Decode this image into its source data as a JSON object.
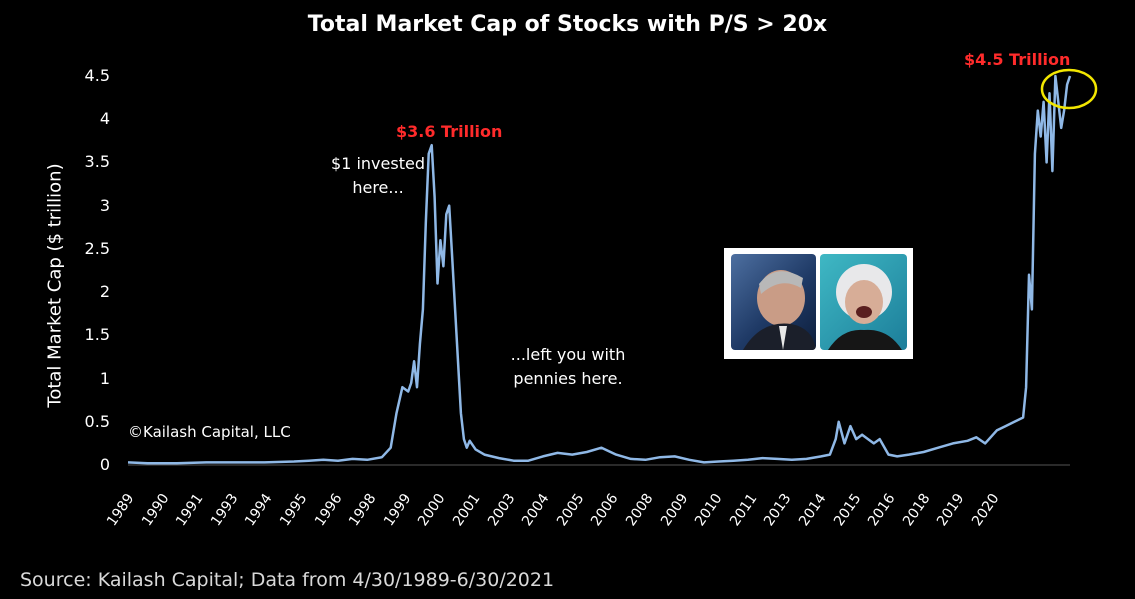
{
  "chart_data": {
    "type": "line",
    "title": "Total Market Cap of Stocks with P/S > 20x",
    "ylabel": "Total Market Cap ($ trillion)",
    "xlabel": "",
    "ylim": [
      0,
      4.5
    ],
    "yticks": [
      "0",
      "0.5",
      "1",
      "1.5",
      "2",
      "2.5",
      "3",
      "3.5",
      "4",
      "4.5"
    ],
    "xticks": [
      "1989",
      "1990",
      "1991",
      "1993",
      "1994",
      "1995",
      "1996",
      "1998",
      "1999",
      "2000",
      "2001",
      "2003",
      "2004",
      "2005",
      "2006",
      "2008",
      "2009",
      "2010",
      "2011",
      "2013",
      "2014",
      "2015",
      "2016",
      "2018",
      "2019",
      "2020"
    ],
    "grid": false,
    "line_color": "#8fb8e6",
    "series": [
      {
        "x": [
          1989.33,
          1990.0,
          1991.0,
          1992.0,
          1993.0,
          1994.0,
          1995.0,
          1995.5,
          1996.0,
          1996.5,
          1997.0,
          1997.5,
          1998.0,
          1998.3,
          1998.5,
          1998.7,
          1998.9,
          1999.0,
          1999.1,
          1999.2,
          1999.3,
          1999.4,
          1999.5,
          1999.6,
          1999.7,
          1999.8,
          1999.9,
          2000.0,
          2000.1,
          2000.2,
          2000.3,
          2000.4,
          2000.5,
          2000.6,
          2000.7,
          2000.8,
          2000.9,
          2001.0,
          2001.2,
          2001.5,
          2002.0,
          2002.5,
          2003.0,
          2003.5,
          2004.0,
          2004.5,
          2005.0,
          2005.5,
          2006.0,
          2006.5,
          2007.0,
          2007.5,
          2008.0,
          2008.5,
          2009.0,
          2009.5,
          2010.0,
          2010.5,
          2011.0,
          2011.5,
          2012.0,
          2012.5,
          2013.0,
          2013.3,
          2013.5,
          2013.6,
          2013.8,
          2014.0,
          2014.2,
          2014.4,
          2014.6,
          2014.8,
          2015.0,
          2015.3,
          2015.6,
          2016.0,
          2016.5,
          2017.0,
          2017.5,
          2018.0,
          2018.3,
          2018.6,
          2019.0,
          2019.3,
          2019.6,
          2019.9,
          2020.0,
          2020.1,
          2020.2,
          2020.3,
          2020.4,
          2020.5,
          2020.6,
          2020.7,
          2020.8,
          2020.9,
          2021.0,
          2021.1,
          2021.2,
          2021.3,
          2021.4,
          2021.5
        ],
        "y": [
          0.03,
          0.02,
          0.02,
          0.03,
          0.03,
          0.03,
          0.04,
          0.05,
          0.06,
          0.05,
          0.07,
          0.06,
          0.09,
          0.2,
          0.6,
          0.9,
          0.85,
          0.95,
          1.2,
          0.9,
          1.4,
          1.8,
          2.8,
          3.6,
          3.7,
          3.1,
          2.1,
          2.6,
          2.3,
          2.9,
          3.0,
          2.4,
          1.8,
          1.2,
          0.6,
          0.3,
          0.2,
          0.28,
          0.18,
          0.12,
          0.08,
          0.05,
          0.05,
          0.1,
          0.14,
          0.12,
          0.15,
          0.2,
          0.12,
          0.07,
          0.06,
          0.09,
          0.1,
          0.06,
          0.03,
          0.04,
          0.05,
          0.06,
          0.08,
          0.07,
          0.06,
          0.07,
          0.1,
          0.12,
          0.3,
          0.5,
          0.25,
          0.45,
          0.3,
          0.35,
          0.3,
          0.25,
          0.3,
          0.12,
          0.1,
          0.12,
          0.15,
          0.2,
          0.25,
          0.28,
          0.32,
          0.25,
          0.4,
          0.45,
          0.5,
          0.55,
          0.9,
          2.2,
          1.8,
          3.6,
          4.1,
          3.8,
          4.2,
          3.5,
          4.3,
          3.4,
          4.5,
          4.2,
          3.9,
          4.1,
          4.4,
          4.5
        ]
      }
    ]
  },
  "annotations": {
    "peak_2000": "$3.6 Trillion",
    "peak_2021": "$4.5 Trillion",
    "invested_line1": "$1 invested",
    "invested_line2": "here...",
    "left_line1": "...left you with",
    "left_line2": "pennies here.",
    "copyright": "©Kailash Capital, LLC"
  },
  "source": "Source: Kailash Capital; Data from 4/30/1989-6/30/2021",
  "highlight_color": "#f2e600"
}
